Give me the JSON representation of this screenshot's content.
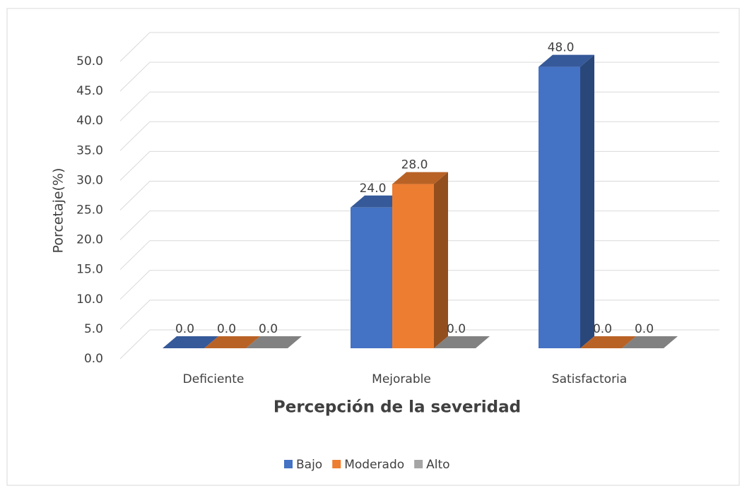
{
  "chart_data": {
    "type": "bar",
    "x_label": "Percepción de la severidad",
    "y_label": "Porcetaje(%)",
    "categories": [
      "Deficiente",
      "Mejorable",
      "Satisfactoria"
    ],
    "series": [
      {
        "name": "Bajo",
        "color": "#4472c4",
        "values": [
          0,
          24,
          48
        ],
        "value_labels": [
          "0.0",
          "24.0",
          "48.0"
        ]
      },
      {
        "name": "Moderado",
        "color": "#ed7d31",
        "values": [
          0,
          28,
          0
        ],
        "value_labels": [
          "0.0",
          "28.0",
          "0.0"
        ]
      },
      {
        "name": "Alto",
        "color": "#a5a5a5",
        "values": [
          0,
          0,
          0
        ],
        "value_labels": [
          "0.0",
          "0.0",
          "0.0"
        ]
      }
    ],
    "ylim": [
      0,
      50
    ],
    "yticks": [
      {
        "value": 0,
        "label": "0.0"
      },
      {
        "value": 5,
        "label": "5.0"
      },
      {
        "value": 10,
        "label": "10.0"
      },
      {
        "value": 15,
        "label": "15.0"
      },
      {
        "value": 20,
        "label": "20.0"
      },
      {
        "value": 25,
        "label": "25.0"
      },
      {
        "value": 30,
        "label": "30.0"
      },
      {
        "value": 35,
        "label": "35.0"
      },
      {
        "value": 40,
        "label": "40.0"
      },
      {
        "value": 45,
        "label": "45.0"
      },
      {
        "value": 50,
        "label": "50.0"
      }
    ],
    "grid": true,
    "legend": "bottom"
  }
}
